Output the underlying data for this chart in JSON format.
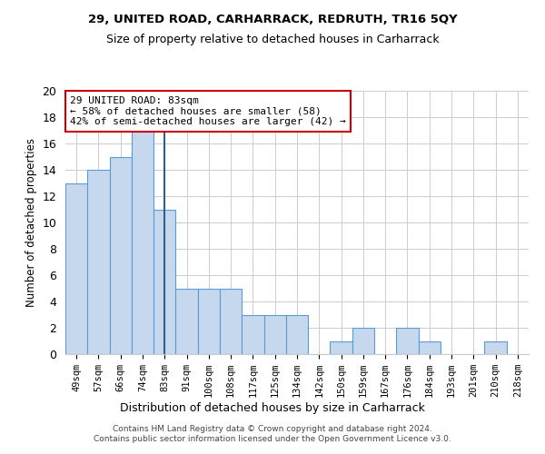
{
  "title1": "29, UNITED ROAD, CARHARRACK, REDRUTH, TR16 5QY",
  "title2": "Size of property relative to detached houses in Carharrack",
  "xlabel": "Distribution of detached houses by size in Carharrack",
  "ylabel": "Number of detached properties",
  "categories": [
    "49sqm",
    "57sqm",
    "66sqm",
    "74sqm",
    "83sqm",
    "91sqm",
    "100sqm",
    "108sqm",
    "117sqm",
    "125sqm",
    "134sqm",
    "142sqm",
    "150sqm",
    "159sqm",
    "167sqm",
    "176sqm",
    "184sqm",
    "193sqm",
    "201sqm",
    "210sqm",
    "218sqm"
  ],
  "values": [
    13,
    14,
    15,
    17,
    11,
    5,
    5,
    5,
    3,
    3,
    3,
    0,
    1,
    2,
    0,
    2,
    1,
    0,
    0,
    1,
    0
  ],
  "bar_color": "#c5d8ed",
  "bar_edge_color": "#5b9bd5",
  "highlight_index": 4,
  "highlight_line_color": "#2e5f8a",
  "ylim": [
    0,
    20
  ],
  "yticks": [
    0,
    2,
    4,
    6,
    8,
    10,
    12,
    14,
    16,
    18,
    20
  ],
  "annotation_text": "29 UNITED ROAD: 83sqm\n← 58% of detached houses are smaller (58)\n42% of semi-detached houses are larger (42) →",
  "annotation_box_color": "#ffffff",
  "annotation_box_edge_color": "#cc0000",
  "footer_text": "Contains HM Land Registry data © Crown copyright and database right 2024.\nContains public sector information licensed under the Open Government Licence v3.0.",
  "background_color": "#ffffff",
  "grid_color": "#cccccc"
}
